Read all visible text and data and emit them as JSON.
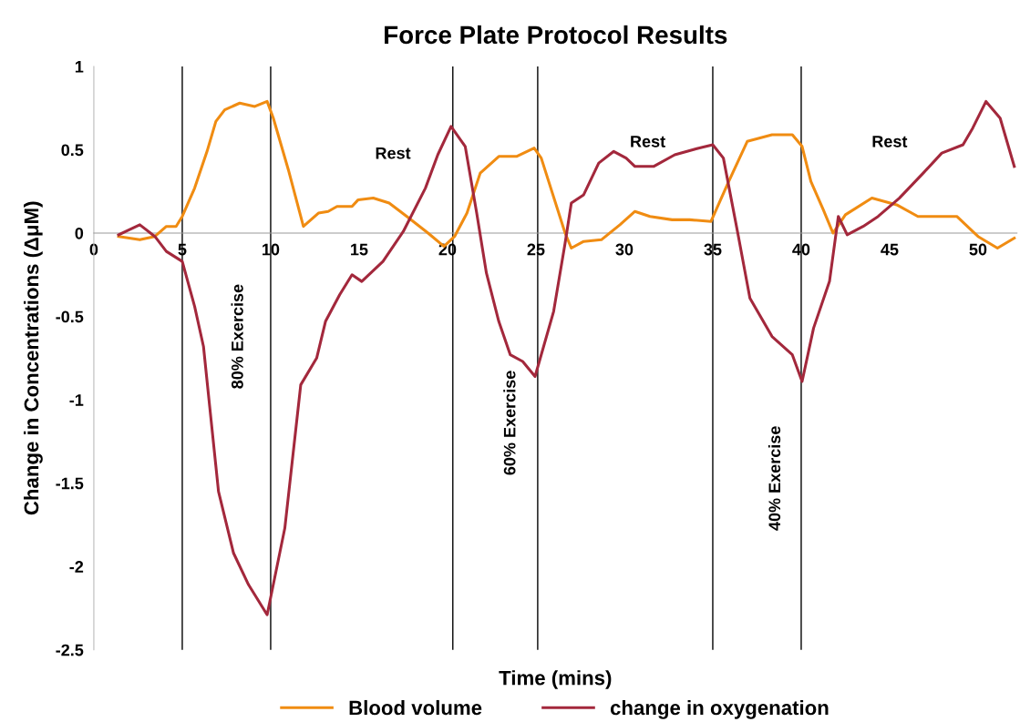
{
  "chart_data": {
    "type": "line",
    "title": "Force Plate Protocol Results",
    "xlabel": "Time (mins)",
    "ylabel": "Change in Concentrations (ΔμM)",
    "xlim": [
      0,
      52.2
    ],
    "xticks": [
      0,
      5,
      10,
      15,
      20,
      25,
      30,
      35,
      40,
      45,
      50
    ],
    "ylim": [
      -2.5,
      1
    ],
    "yticks": [
      {
        "value": -2.5,
        "label": "-2.5"
      },
      {
        "value": -2,
        "label": "-2"
      },
      {
        "value": -1.5,
        "label": "-1.5"
      },
      {
        "value": -1,
        "label": "-1"
      },
      {
        "value": -0.5,
        "label": "-0.5"
      },
      0,
      0.5,
      1
    ],
    "grid": false,
    "legend": "bottom",
    "marker": "none",
    "line_style": "solid",
    "series": [
      {
        "name": "Blood volume",
        "color": "#f08c12",
        "x": [
          1.4,
          2.6,
          3.45,
          4.1,
          4.65,
          5.0,
          5.7,
          6.4,
          6.9,
          7.4,
          8.25,
          9.1,
          9.8,
          10.15,
          11.0,
          11.85,
          12.7,
          13.25,
          13.75,
          14.6,
          14.95,
          15.8,
          16.7,
          17.7,
          18.9,
          19.8,
          20.4,
          21.1,
          21.85,
          22.9,
          23.9,
          24.9,
          25.3,
          26.65,
          27.0,
          27.7,
          28.7,
          29.75,
          30.6,
          31.45,
          32.7,
          33.7,
          34.9,
          35.9,
          36.95,
          38.35,
          39.5,
          40.05,
          40.55,
          41.25,
          41.8,
          42.5,
          44.0,
          45.4,
          46.6,
          47.9,
          48.8,
          50.0,
          51.1,
          52.05
        ],
        "values": [
          -0.02,
          -0.04,
          -0.02,
          0.04,
          0.04,
          0.1,
          0.27,
          0.49,
          0.67,
          0.74,
          0.78,
          0.76,
          0.79,
          0.69,
          0.38,
          0.04,
          0.12,
          0.13,
          0.16,
          0.16,
          0.2,
          0.21,
          0.18,
          0.1,
          0.0,
          -0.08,
          -0.02,
          0.12,
          0.36,
          0.46,
          0.46,
          0.51,
          0.45,
          0.0,
          -0.09,
          -0.05,
          -0.04,
          0.05,
          0.13,
          0.1,
          0.08,
          0.08,
          0.07,
          0.31,
          0.55,
          0.59,
          0.59,
          0.52,
          0.31,
          0.14,
          0.0,
          0.11,
          0.21,
          0.17,
          0.1,
          0.1,
          0.1,
          -0.02,
          -0.09,
          -0.03
        ]
      },
      {
        "name": "change in oxygenation",
        "color": "#a3283c",
        "x": [
          1.4,
          2.6,
          3.45,
          4.1,
          5.0,
          5.7,
          6.2,
          6.55,
          7.05,
          7.9,
          8.75,
          9.8,
          10.8,
          11.7,
          12.6,
          13.1,
          13.9,
          14.6,
          15.15,
          16.35,
          17.5,
          18.75,
          19.45,
          20.2,
          21.0,
          21.65,
          22.2,
          22.9,
          23.55,
          24.25,
          24.95,
          26.0,
          26.65,
          27.0,
          27.7,
          28.55,
          29.4,
          30.1,
          30.6,
          31.65,
          32.85,
          34.2,
          35.0,
          35.6,
          36.45,
          37.1,
          38.35,
          39.5,
          40.05,
          40.7,
          41.6,
          42.1,
          42.6,
          43.5,
          44.35,
          45.55,
          46.9,
          47.95,
          49.15,
          49.7,
          50.45,
          51.25,
          52.05
        ],
        "values": [
          -0.01,
          0.05,
          -0.02,
          -0.11,
          -0.17,
          -0.44,
          -0.68,
          -1.04,
          -1.55,
          -1.92,
          -2.11,
          -2.29,
          -1.77,
          -0.91,
          -0.75,
          -0.53,
          -0.37,
          -0.25,
          -0.29,
          -0.17,
          0.01,
          0.27,
          0.47,
          0.64,
          0.52,
          0.12,
          -0.24,
          -0.53,
          -0.73,
          -0.77,
          -0.86,
          -0.47,
          -0.06,
          0.18,
          0.23,
          0.42,
          0.49,
          0.45,
          0.4,
          0.4,
          0.47,
          0.51,
          0.53,
          0.45,
          -0.02,
          -0.39,
          -0.62,
          -0.73,
          -0.89,
          -0.57,
          -0.29,
          0.1,
          -0.01,
          0.04,
          0.1,
          0.21,
          0.36,
          0.48,
          0.53,
          0.63,
          0.79,
          0.69,
          0.4
        ]
      }
    ],
    "ref_lines": [
      {
        "axis": "x",
        "value": 5.0,
        "color": "#000000"
      },
      {
        "axis": "x",
        "value": 10.0,
        "color": "#000000"
      },
      {
        "axis": "x",
        "value": 20.3,
        "color": "#000000"
      },
      {
        "axis": "x",
        "value": 25.1,
        "color": "#000000"
      },
      {
        "axis": "x",
        "value": 35.0,
        "color": "#000000"
      },
      {
        "axis": "x",
        "value": 40.0,
        "color": "#000000"
      }
    ],
    "annotations": [
      "Rest",
      "Rest",
      "Rest",
      "80% Exercise",
      "60% Exercise",
      "40% Exercise"
    ]
  }
}
